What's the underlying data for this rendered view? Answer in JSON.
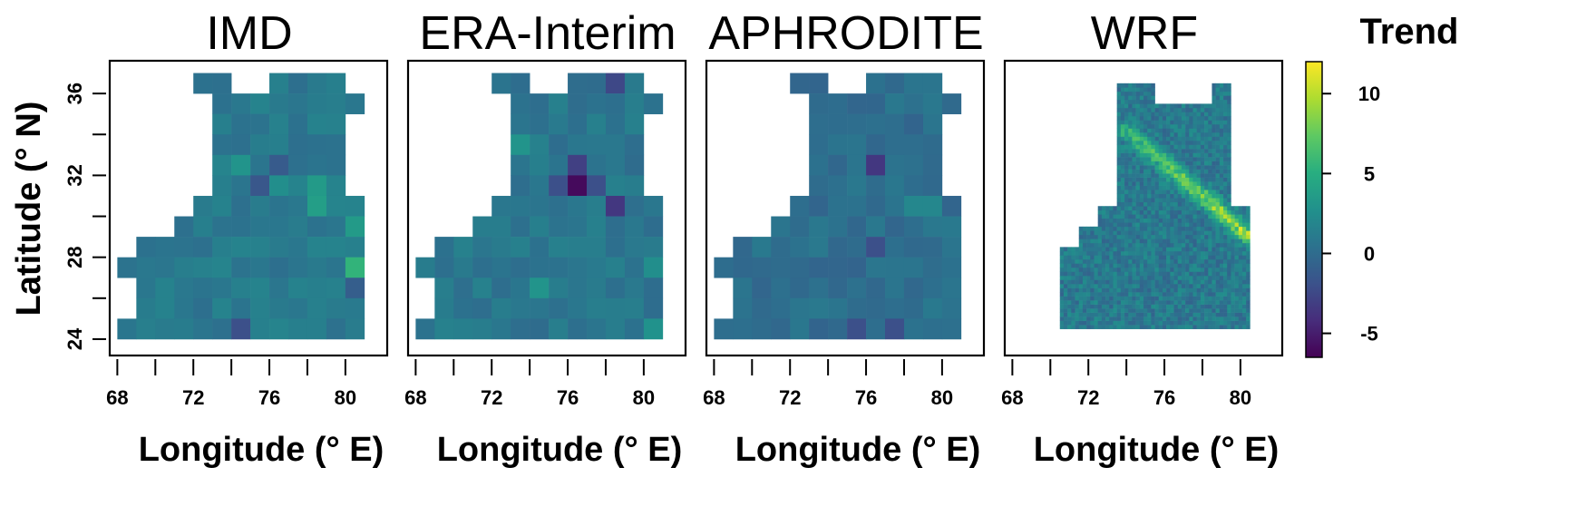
{
  "chart_data": {
    "type": "heatmap",
    "colorbar": {
      "title": "Trend",
      "range": [
        -6.5,
        12
      ],
      "ticks": [
        "10",
        "5",
        "0",
        "-5"
      ],
      "tick_values": [
        10,
        5,
        0,
        -5
      ],
      "colormap": "viridis"
    },
    "y_axis": {
      "label": "Latitude (° N)",
      "ticks": [
        "24",
        "28",
        "32",
        "36"
      ],
      "tick_values": [
        24,
        28,
        32,
        36
      ],
      "range": [
        23.2,
        37.6
      ]
    },
    "x_axis": {
      "label": "Longitude (° E)",
      "ticks": [
        "68",
        "72",
        "76",
        "80"
      ],
      "tick_values": [
        68,
        72,
        76,
        80
      ],
      "range": [
        67.6,
        82.2
      ]
    },
    "region_rows": [
      {
        "lat": 36.5,
        "from": 72.5,
        "to": 73.5
      },
      {
        "lat": 36.5,
        "from": 76.5,
        "to": 79.5
      },
      {
        "lat": 35.5,
        "from": 73.5,
        "to": 80.5
      },
      {
        "lat": 34.5,
        "from": 73.5,
        "to": 79.5
      },
      {
        "lat": 33.5,
        "from": 73.5,
        "to": 79.5
      },
      {
        "lat": 32.5,
        "from": 73.5,
        "to": 79.5
      },
      {
        "lat": 31.5,
        "from": 73.5,
        "to": 79.5
      },
      {
        "lat": 30.5,
        "from": 72.5,
        "to": 80.5
      },
      {
        "lat": 29.5,
        "from": 71.5,
        "to": 80.5
      },
      {
        "lat": 28.5,
        "from": 69.5,
        "to": 80.5
      },
      {
        "lat": 27.5,
        "from": 69.5,
        "to": 80.5
      },
      {
        "lat": 26.5,
        "from": 69.5,
        "to": 80.5
      },
      {
        "lat": 25.5,
        "from": 69.5,
        "to": 80.5
      },
      {
        "lat": 24.5,
        "from": 68.5,
        "to": 80.5
      },
      {
        "lat": 27.5,
        "from": 68.5,
        "to": 68.5
      }
    ],
    "wrf_region": [
      [
        70.5,
        24.5
      ],
      [
        80.5,
        24.5
      ],
      [
        80.5,
        30.5
      ],
      [
        79.5,
        30.5
      ],
      [
        79.5,
        36.5
      ],
      [
        78.5,
        36.5
      ],
      [
        78.5,
        35.5
      ],
      [
        75.5,
        35.5
      ],
      [
        75.5,
        36.5
      ],
      [
        73.5,
        36.5
      ],
      [
        73.5,
        30.5
      ],
      [
        72.5,
        30.5
      ],
      [
        72.5,
        29.5
      ],
      [
        71.5,
        29.5
      ],
      [
        71.5,
        28.5
      ],
      [
        70.5,
        28.5
      ]
    ],
    "panels": [
      {
        "title": "IMD",
        "typical_trend": 1.0,
        "anomalies": [
          {
            "lon": 76.5,
            "lat": 31.5,
            "value": 2.5
          },
          {
            "lon": 78.5,
            "lat": 31.5,
            "value": 3.5
          },
          {
            "lon": 78.5,
            "lat": 30.5,
            "value": 3.8
          },
          {
            "lon": 80.5,
            "lat": 27.5,
            "value": 5.5
          },
          {
            "lon": 76.5,
            "lat": 32.5,
            "value": -1.2
          },
          {
            "lon": 74.5,
            "lat": 24.5,
            "value": -2.0
          },
          {
            "lon": 80.5,
            "lat": 26.5,
            "value": -1.0
          },
          {
            "lon": 75.5,
            "lat": 31.5,
            "value": -1.5
          },
          {
            "lon": 74.5,
            "lat": 32.5,
            "value": 3.0
          },
          {
            "lon": 80.5,
            "lat": 29.5,
            "value": 3.5
          }
        ]
      },
      {
        "title": "ERA-Interim",
        "typical_trend": 0.8,
        "anomalies": [
          {
            "lon": 76.5,
            "lat": 31.5,
            "value": -6.0
          },
          {
            "lon": 76.5,
            "lat": 32.5,
            "value": -3.0
          },
          {
            "lon": 78.5,
            "lat": 30.5,
            "value": -3.5
          },
          {
            "lon": 78.5,
            "lat": 36.5,
            "value": -2.5
          },
          {
            "lon": 75.5,
            "lat": 31.5,
            "value": -2.0
          },
          {
            "lon": 77.5,
            "lat": 31.5,
            "value": -2.0
          },
          {
            "lon": 73.5,
            "lat": 33.5,
            "value": 3.0
          },
          {
            "lon": 74.5,
            "lat": 26.5,
            "value": 3.0
          },
          {
            "lon": 80.5,
            "lat": 24.5,
            "value": 2.8
          },
          {
            "lon": 80.5,
            "lat": 27.5,
            "value": 2.5
          }
        ]
      },
      {
        "title": "APHRODITE",
        "typical_trend": 0.2,
        "anomalies": [
          {
            "lon": 76.5,
            "lat": 32.5,
            "value": -3.5
          },
          {
            "lon": 76.5,
            "lat": 28.5,
            "value": -2.0
          },
          {
            "lon": 78.5,
            "lat": 30.5,
            "value": 2.0
          },
          {
            "lon": 79.5,
            "lat": 30.5,
            "value": 2.0
          },
          {
            "lon": 77.5,
            "lat": 24.5,
            "value": -2.0
          },
          {
            "lon": 75.5,
            "lat": 24.5,
            "value": -2.0
          }
        ]
      },
      {
        "title": "WRF",
        "typical_trend": 1.0,
        "max_trend": 11.5,
        "features": "high-resolution field with a band of large positive trend (8–11.5) along the Himalayan foothills from about 74° E, 34° N to 80.5° E, 29° N; mostly 0–2 elsewhere"
      }
    ]
  }
}
